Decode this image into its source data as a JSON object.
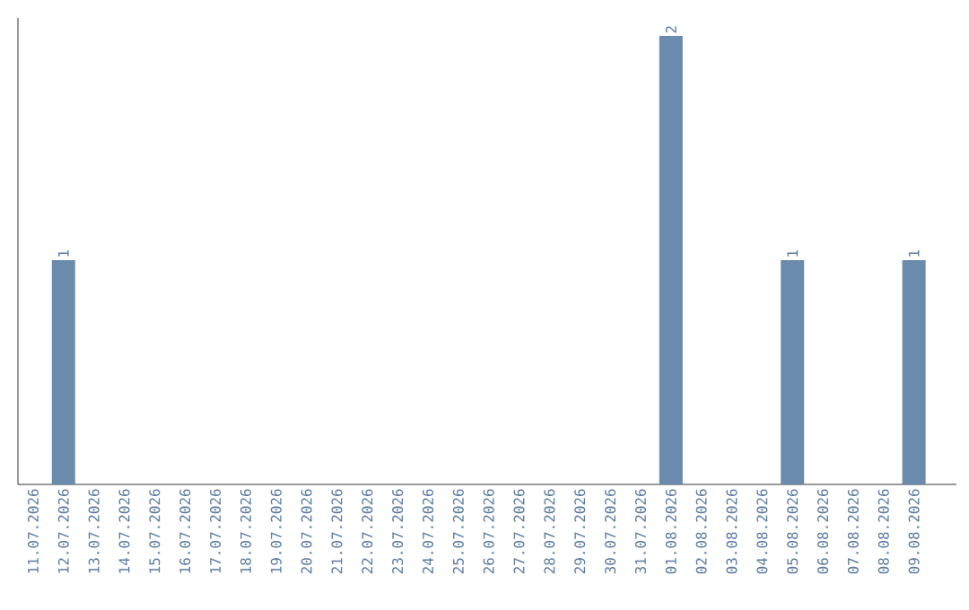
{
  "chart_data": {
    "type": "bar",
    "categories": [
      "11.07.2026",
      "12.07.2026",
      "13.07.2026",
      "14.07.2026",
      "15.07.2026",
      "16.07.2026",
      "17.07.2026",
      "18.07.2026",
      "19.07.2026",
      "20.07.2026",
      "21.07.2026",
      "22.07.2026",
      "23.07.2026",
      "24.07.2026",
      "25.07.2026",
      "26.07.2026",
      "27.07.2026",
      "28.07.2026",
      "29.07.2026",
      "30.07.2026",
      "31.07.2026",
      "01.08.2026",
      "02.08.2026",
      "03.08.2026",
      "04.08.2026",
      "05.08.2026",
      "06.08.2026",
      "07.08.2026",
      "08.08.2026",
      "09.08.2026"
    ],
    "values": [
      0,
      1,
      0,
      0,
      0,
      0,
      0,
      0,
      0,
      0,
      0,
      0,
      0,
      0,
      0,
      0,
      0,
      0,
      0,
      0,
      0,
      2,
      0,
      0,
      0,
      1,
      0,
      0,
      0,
      1
    ],
    "value_labels": [
      null,
      "1",
      null,
      null,
      null,
      null,
      null,
      null,
      null,
      null,
      null,
      null,
      null,
      null,
      null,
      null,
      null,
      null,
      null,
      null,
      null,
      "2",
      null,
      null,
      null,
      "1",
      null,
      null,
      null,
      "1"
    ],
    "color": "#6a8bab"
  }
}
